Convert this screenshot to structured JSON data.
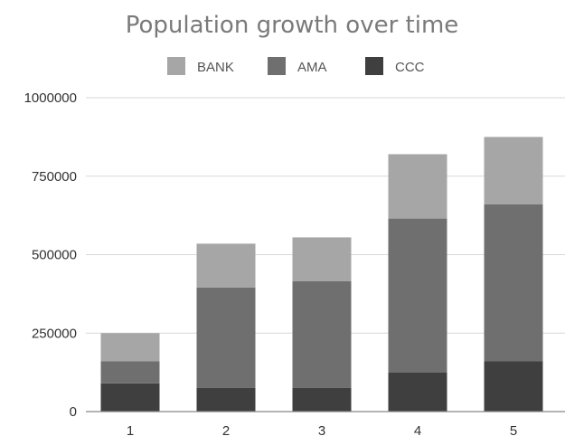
{
  "chart_data": {
    "type": "bar",
    "stacked": true,
    "title": "Population growth over time",
    "xlabel": "",
    "ylabel": "",
    "categories": [
      "1",
      "2",
      "3",
      "4",
      "5"
    ],
    "ylim": [
      0,
      1000000
    ],
    "yticks": [
      "0",
      "250000",
      "500000",
      "750000",
      "1000000"
    ],
    "grid": true,
    "legend_position": "top",
    "series": [
      {
        "name": "CCC",
        "color": "#3f3f3f",
        "values": [
          90000,
          75000,
          75000,
          125000,
          160000
        ]
      },
      {
        "name": "AMA",
        "color": "#6f6f6f",
        "values": [
          70000,
          320000,
          340000,
          490000,
          500000
        ]
      },
      {
        "name": "BANK",
        "color": "#a6a6a6",
        "values": [
          90000,
          140000,
          140000,
          205000,
          215000
        ]
      }
    ],
    "legend_order": [
      "BANK",
      "AMA",
      "CCC"
    ]
  }
}
